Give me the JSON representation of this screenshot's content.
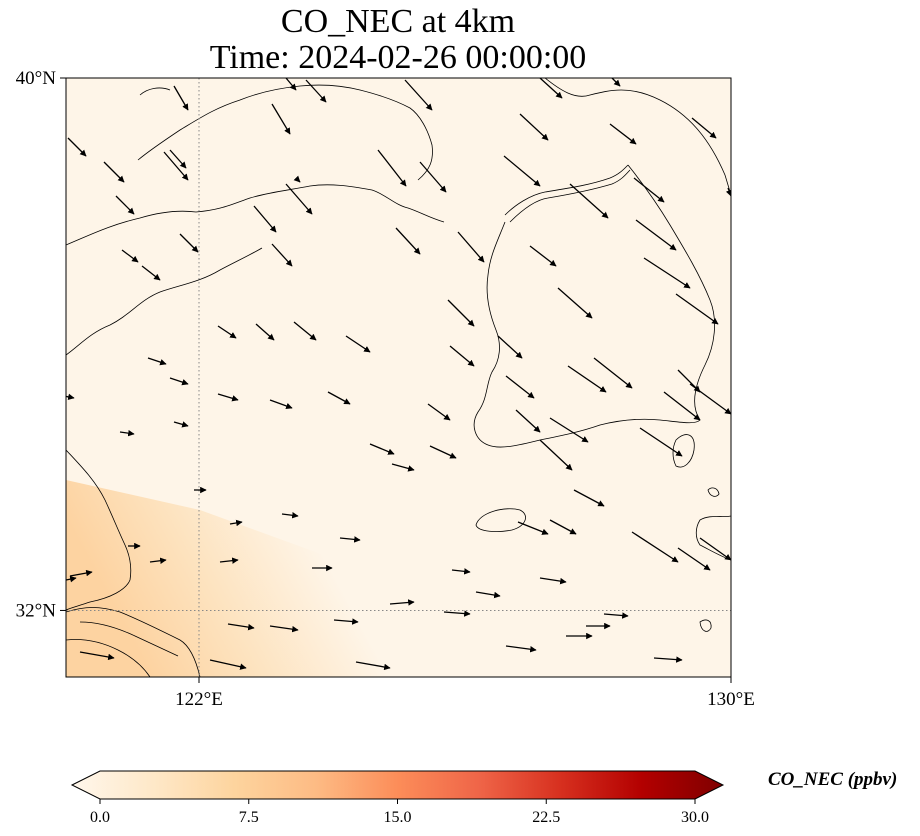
{
  "title": {
    "line1": "CO_NEC at 4km",
    "line2": "Time: 2024-02-26 00:00:00"
  },
  "map": {
    "lat_range": [
      31.0,
      40.0
    ],
    "lon_range": [
      120.0,
      130.0
    ],
    "lat_ticks": [
      {
        "value": 40,
        "label": "40°N"
      },
      {
        "value": 32,
        "label": "32°N"
      }
    ],
    "lon_ticks": [
      {
        "value": 122,
        "label": "122°E"
      },
      {
        "value": 130,
        "label": "130°E"
      }
    ],
    "gridlines": {
      "lon": [
        122
      ],
      "lat": [
        32
      ],
      "style": "dotted"
    },
    "field": "CO_NEC",
    "field_description": "background is near 0 ppbv over most of the domain, rising to roughly 5–7 ppbv in the south-west corner",
    "wind_direction": "north-westerly, turning westerly in the south"
  },
  "colorbar": {
    "label": "CO_NEC (ppbv)",
    "min": 0.0,
    "max": 30.0,
    "extend": "both",
    "colormap": "OrRd",
    "colors": [
      "#fff7ec",
      "#fee8c8",
      "#fdd49e",
      "#fdbb84",
      "#fc8d59",
      "#ef6548",
      "#d7301f",
      "#b30000",
      "#7f0000"
    ],
    "ticks": [
      "0.0",
      "7.5",
      "15.0",
      "22.5",
      "30.0"
    ]
  },
  "colors": {
    "background": "#fef5e8",
    "high_concentration": "#fdcd92",
    "coastline": "#000000",
    "vector": "#000000"
  }
}
